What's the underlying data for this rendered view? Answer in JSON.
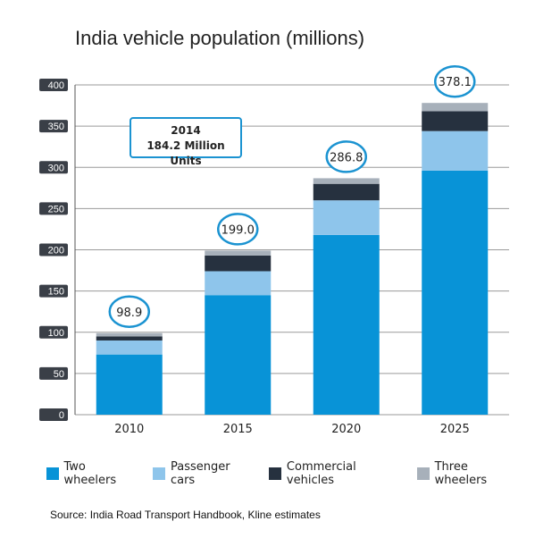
{
  "title": "India vehicle population (millions)",
  "source": "Source: India Road Transport Handbook, Kline estimates",
  "callout": {
    "line1": "2014",
    "line2": "184.2 Million Units"
  },
  "chart_data": {
    "type": "bar",
    "stacked": true,
    "title": "India vehicle population (millions)",
    "categories": [
      "2010",
      "2015",
      "2020",
      "2025"
    ],
    "series": [
      {
        "name": "Two wheelers",
        "color": "#0893d7",
        "values": [
          73,
          145,
          218,
          296
        ]
      },
      {
        "name": "Passenger cars",
        "color": "#8ec5eb",
        "values": [
          17,
          29,
          42,
          48
        ]
      },
      {
        "name": "Commercial vehicles",
        "color": "#26313f",
        "values": [
          5,
          19,
          20,
          24
        ]
      },
      {
        "name": "Three wheelers",
        "color": "#a7b0ba",
        "values": [
          3.9,
          6,
          6.8,
          10.1
        ]
      }
    ],
    "totals": [
      "98.9",
      "199.0",
      "286.8",
      "378.1"
    ],
    "y_ticks": [
      0,
      50,
      100,
      150,
      200,
      250,
      300,
      350,
      400
    ],
    "ylim": [
      0,
      400
    ],
    "grid": true,
    "legend": "bottom"
  }
}
